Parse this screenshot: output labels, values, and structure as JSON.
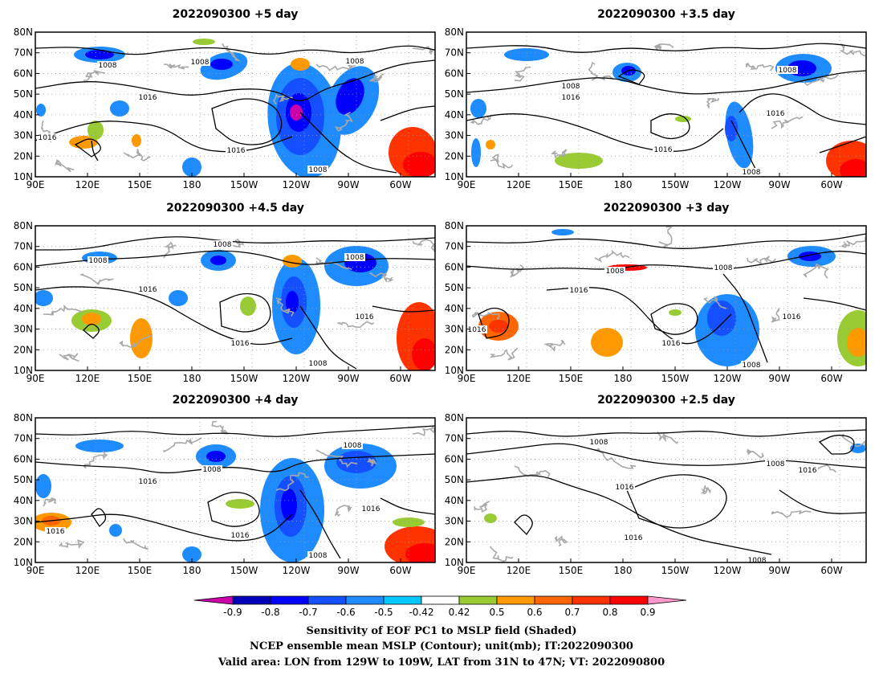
{
  "panels": [
    {
      "title": "2022090300 +5 day"
    },
    {
      "title": "2022090300 +3.5 day"
    },
    {
      "title": "2022090300 +4.5 day"
    },
    {
      "title": "2022090300 +3 day"
    },
    {
      "title": "2022090300 +4 day"
    },
    {
      "title": "2022090300 +2.5 day"
    }
  ],
  "axes": {
    "lat_ticks": [
      "80N",
      "70N",
      "60N",
      "50N",
      "40N",
      "30N",
      "20N",
      "10N"
    ],
    "lon_ticks": [
      "90E",
      "120E",
      "150E",
      "180",
      "150W",
      "120W",
      "90W",
      "60W"
    ]
  },
  "contour_labels": [
    "1008",
    "1016"
  ],
  "colorbar": {
    "tick_labels": [
      "-0.9",
      "-0.8",
      "-0.7",
      "-0.6",
      "-0.5",
      "-0.42",
      "0.42",
      "0.5",
      "0.6",
      "0.7",
      "0.8",
      "0.9"
    ],
    "colors": [
      "#cc00aa",
      "#0000bb",
      "#0000ff",
      "#1450ff",
      "#1e8cff",
      "#00c8ff",
      "#ffffff",
      "#99cc33",
      "#ff9900",
      "#ff6600",
      "#ff3300",
      "#ff0000",
      "#ff99cc"
    ]
  },
  "captions": [
    "Sensitivity of EOF PC1 to MSLP field (Shaded)",
    "NCEP ensemble mean MSLP (Contour); unit(mb); IT:2022090300",
    "Valid area: LON from 129W to 109W, LAT from 31N to 47N; VT: 2022090800"
  ]
}
